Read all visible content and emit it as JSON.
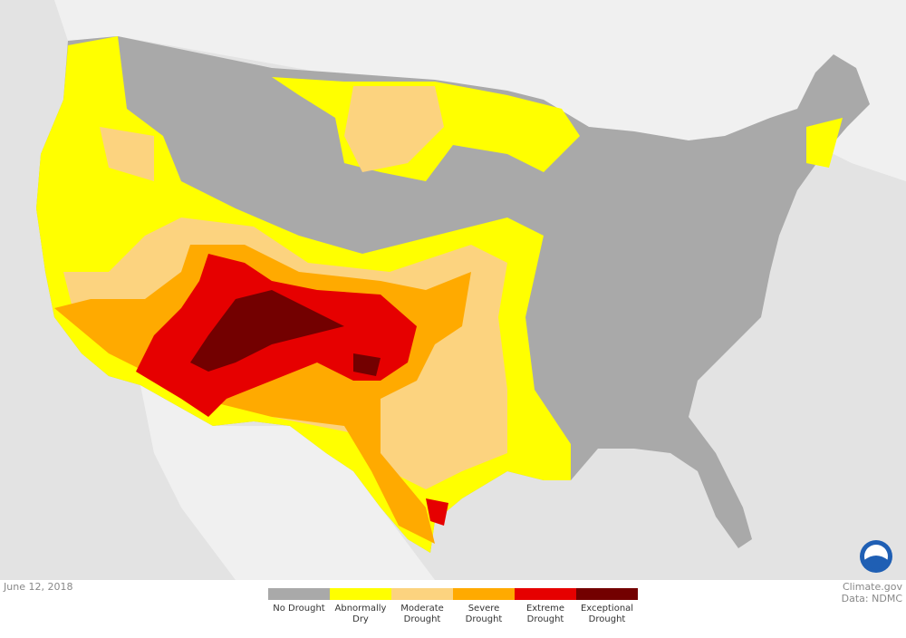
{
  "footer": {
    "date": "June 12, 2018",
    "credit": "Climate.gov",
    "source": "Data: NDMC"
  },
  "legend": [
    {
      "label": "No Drought",
      "color": "#a9a9a9"
    },
    {
      "label": "Abnormally Dry",
      "color": "#ffff00"
    },
    {
      "label": "Moderate Drought",
      "color": "#fcd37f"
    },
    {
      "label": "Severe Drought",
      "color": "#ffaa00"
    },
    {
      "label": "Extreme Drought",
      "color": "#e60000"
    },
    {
      "label": "Exceptional Drought",
      "color": "#730000"
    }
  ]
}
